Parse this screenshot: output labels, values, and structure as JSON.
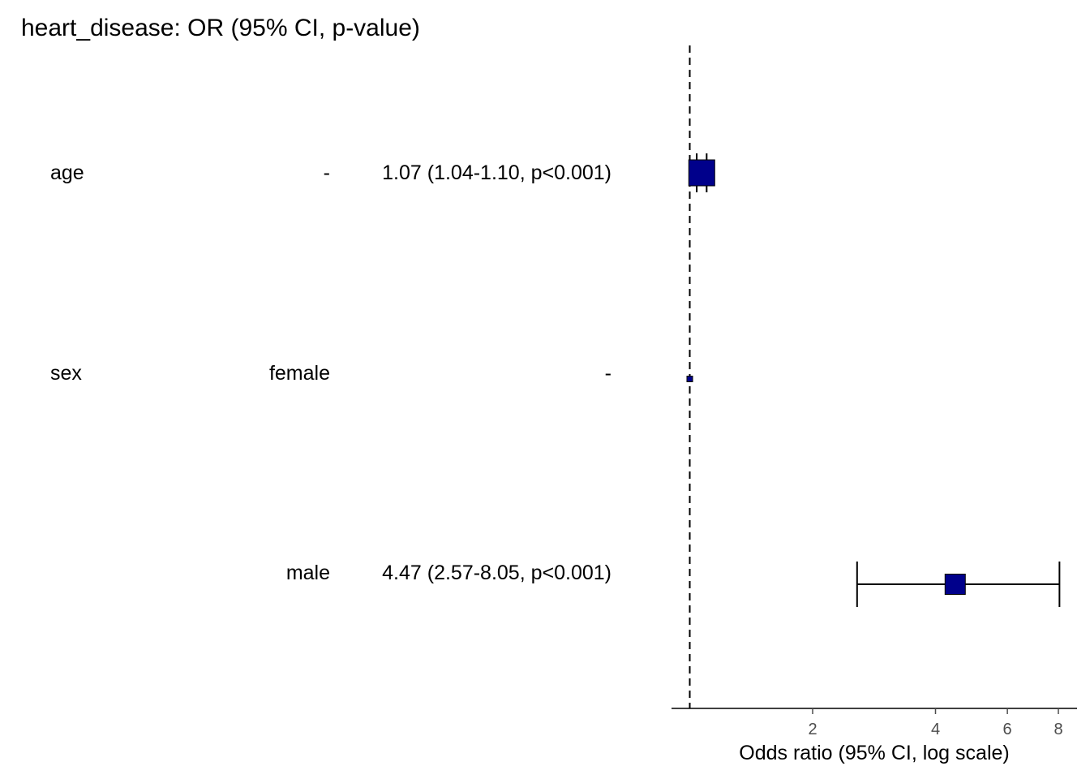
{
  "title": "heart_disease: OR (95% CI, p-value)",
  "rows": [
    {
      "label": "age",
      "level": "-",
      "estimate_text": "1.07 (1.04-1.10, p<0.001)"
    },
    {
      "label": "sex",
      "level": "female",
      "estimate_text": "-"
    },
    {
      "label": "",
      "level": "male",
      "estimate_text": "4.47 (2.57-8.05, p<0.001)"
    }
  ],
  "chart_data": {
    "type": "scatter",
    "subtype": "forest plot",
    "x_scale": "log",
    "xlim": [
      1.0,
      8.6
    ],
    "reference_line": 1,
    "xticks": [
      2,
      4,
      6,
      8
    ],
    "xlabel": "Odds ratio (95% CI, log scale)",
    "points": [
      {
        "label": "age",
        "or": 1.07,
        "lower": 1.04,
        "upper": 1.1,
        "marker": "large"
      },
      {
        "label": "female",
        "or": 1.0,
        "lower": null,
        "upper": null,
        "marker": "reference"
      },
      {
        "label": "male",
        "or": 4.47,
        "lower": 2.57,
        "upper": 8.05,
        "marker": "medium"
      }
    ],
    "colors": {
      "marker_fill": "#00008B",
      "line": "#000000",
      "axis_text": "#4D4D4D"
    }
  }
}
